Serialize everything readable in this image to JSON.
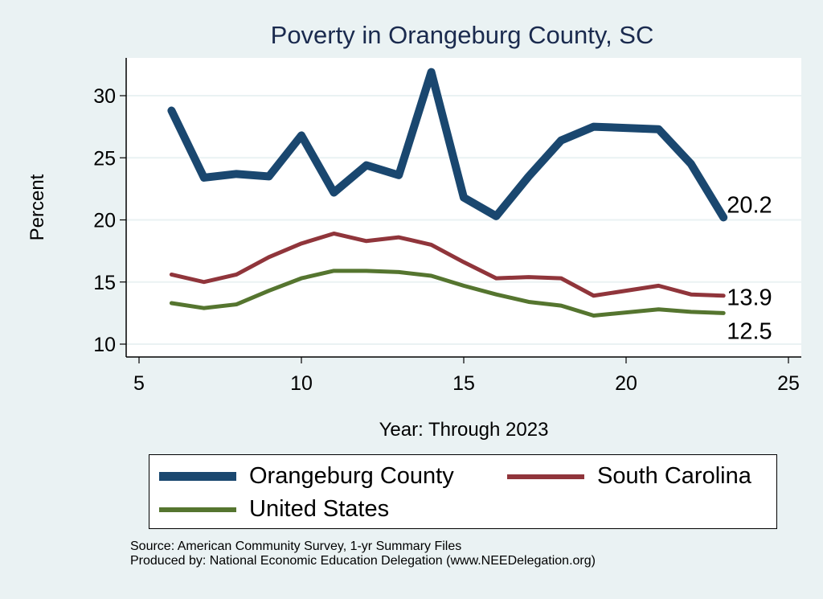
{
  "chart_data": {
    "type": "line",
    "title": "Poverty in Orangeburg County, SC",
    "xlabel": "Year: Through 2023",
    "ylabel": "Percent",
    "xlim": [
      5,
      25
    ],
    "ylim": [
      9.2,
      33.3
    ],
    "xticks": [
      5,
      10,
      15,
      20,
      25
    ],
    "yticks": [
      10,
      15,
      20,
      25,
      30
    ],
    "grid": true,
    "legend_position": "bottom",
    "series": [
      {
        "name": "Orangeburg County",
        "color": "#1a476f",
        "x": [
          6,
          7,
          8,
          9,
          10,
          11,
          12,
          13,
          14,
          15,
          16,
          17,
          18,
          19,
          21,
          22,
          23
        ],
        "values": [
          28.8,
          23.4,
          23.7,
          23.5,
          26.8,
          22.2,
          24.4,
          23.6,
          31.9,
          21.8,
          20.3,
          23.5,
          26.4,
          27.5,
          27.3,
          24.5,
          20.2
        ],
        "end_label": "20.2"
      },
      {
        "name": "South Carolina",
        "color": "#90353b",
        "x": [
          6,
          7,
          8,
          9,
          10,
          11,
          12,
          13,
          14,
          15,
          16,
          17,
          18,
          19,
          21,
          22,
          23
        ],
        "values": [
          15.6,
          15.0,
          15.6,
          17.0,
          18.1,
          18.9,
          18.3,
          18.6,
          18.0,
          16.6,
          15.3,
          15.4,
          15.3,
          13.9,
          14.7,
          14.0,
          13.9
        ],
        "end_label": "13.9"
      },
      {
        "name": "United States",
        "color": "#55752f",
        "x": [
          6,
          7,
          8,
          9,
          10,
          11,
          12,
          13,
          14,
          15,
          16,
          17,
          18,
          19,
          21,
          22,
          23
        ],
        "values": [
          13.3,
          12.9,
          13.2,
          14.3,
          15.3,
          15.9,
          15.9,
          15.8,
          15.5,
          14.7,
          14.0,
          13.4,
          13.1,
          12.3,
          12.8,
          12.6,
          12.5
        ],
        "end_label": "12.5"
      }
    ],
    "notes": [
      "Source: American Community Survey, 1-yr Summary Files",
      "Produced by: National Economic Education Delegation (www.NEEDelegation.org)"
    ]
  }
}
